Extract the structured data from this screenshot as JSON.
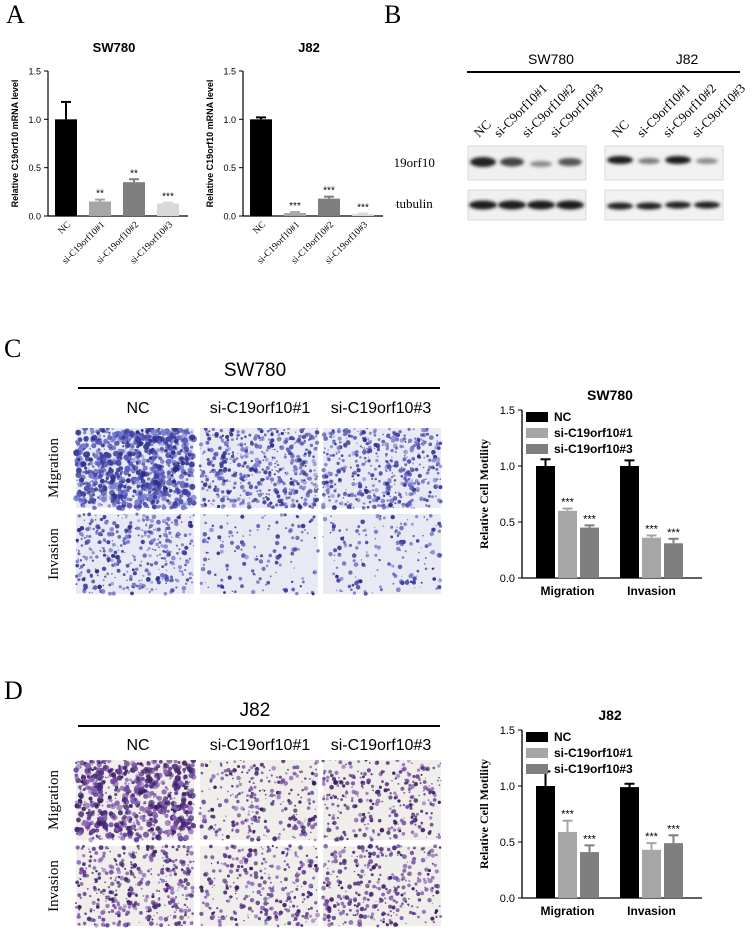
{
  "panels": {
    "A": "A",
    "B": "B",
    "C": "C",
    "D": "D"
  },
  "panelA": {
    "charts": [
      {
        "type": "bar",
        "title": "SW780",
        "ylabel": "Relative C19orf10 mRNA level",
        "categories": [
          "NC",
          "si-C19orf10#1",
          "si-C19orf10#2",
          "si-C19orf10#3"
        ],
        "values": [
          1.0,
          0.15,
          0.35,
          0.13
        ],
        "errors": [
          0.18,
          0.02,
          0.03,
          0.01
        ],
        "significance": [
          "",
          "**",
          "**",
          "***"
        ],
        "colors": [
          "#000000",
          "#a6a6a6",
          "#7f7f7f",
          "#d9d9d9"
        ],
        "ylim": [
          0,
          1.5
        ],
        "yticks": [
          "0.0",
          "0.5",
          "1.0",
          "1.5"
        ]
      },
      {
        "type": "bar",
        "title": "J82",
        "ylabel": "Relative C19orf10 mRNA level",
        "categories": [
          "NC",
          "si-C19orf10#1",
          "si-C19orf10#2",
          "si-C19orf10#3"
        ],
        "values": [
          1.0,
          0.03,
          0.18,
          0.02
        ],
        "errors": [
          0.02,
          0.01,
          0.02,
          0.005
        ],
        "significance": [
          "",
          "***",
          "***",
          "***"
        ],
        "colors": [
          "#000000",
          "#a6a6a6",
          "#7f7f7f",
          "#d9d9d9"
        ],
        "ylim": [
          0,
          1.5
        ],
        "yticks": [
          "0.0",
          "0.5",
          "1.0",
          "1.5"
        ]
      }
    ]
  },
  "panelB": {
    "groups": [
      "SW780",
      "J82"
    ],
    "lanes": [
      "NC",
      "si-C9orf10#1",
      "si-C9orf10#2",
      "si-C9orf10#3"
    ],
    "rows": [
      "C19orf10",
      "β-tubulin"
    ]
  },
  "panelC": {
    "cell_line": "SW780",
    "columns": [
      "NC",
      "si-C19orf10#1",
      "si-C19orf10#3"
    ],
    "rows": [
      "Migration",
      "Invasion"
    ]
  },
  "panelD": {
    "cell_line": "J82",
    "columns": [
      "NC",
      "si-C19orf10#1",
      "si-C19orf10#3"
    ],
    "rows": [
      "Migration",
      "Invasion"
    ]
  },
  "chart_data": [
    {
      "type": "bar",
      "title": "SW780",
      "ylabel": "Relative C19orf10 mRNA level",
      "categories": [
        "NC",
        "si-C19orf10#1",
        "si-C19orf10#2",
        "si-C19orf10#3"
      ],
      "values": [
        1.0,
        0.15,
        0.35,
        0.13
      ],
      "ylim": [
        0,
        1.5
      ]
    },
    {
      "type": "bar",
      "title": "J82",
      "ylabel": "Relative C19orf10 mRNA level",
      "categories": [
        "NC",
        "si-C19orf10#1",
        "si-C19orf10#2",
        "si-C19orf10#3"
      ],
      "values": [
        1.0,
        0.03,
        0.18,
        0.02
      ],
      "ylim": [
        0,
        1.5
      ]
    },
    {
      "type": "bar",
      "title": "SW780",
      "ylabel": "Relative Cell Motility",
      "categories": [
        "Migration",
        "Invasion"
      ],
      "series": [
        {
          "name": "NC",
          "values": [
            1.0,
            1.0
          ],
          "errors": [
            0.06,
            0.05
          ],
          "color": "#000000"
        },
        {
          "name": "si-C19orf10#1",
          "values": [
            0.6,
            0.36
          ],
          "errors": [
            0.02,
            0.02
          ],
          "color": "#a6a6a6"
        },
        {
          "name": "si-C19orf10#3",
          "values": [
            0.45,
            0.31
          ],
          "errors": [
            0.02,
            0.04
          ],
          "color": "#7f7f7f"
        }
      ],
      "significance": [
        [
          "",
          "***",
          "***"
        ],
        [
          "",
          "***",
          "***"
        ]
      ],
      "ylim": [
        0,
        1.5
      ],
      "yticks": [
        "0.0",
        "0.5",
        "1.0",
        "1.5"
      ],
      "legend": "top-left"
    },
    {
      "type": "bar",
      "title": "J82",
      "ylabel": "Relative Cell Motility",
      "categories": [
        "Migration",
        "Invasion"
      ],
      "series": [
        {
          "name": "NC",
          "values": [
            1.0,
            0.99
          ],
          "errors": [
            0.13,
            0.03
          ],
          "color": "#000000"
        },
        {
          "name": "si-C19orf10#1",
          "values": [
            0.59,
            0.43
          ],
          "errors": [
            0.1,
            0.06
          ],
          "color": "#a6a6a6"
        },
        {
          "name": "si-C19orf10#3",
          "values": [
            0.41,
            0.49
          ],
          "errors": [
            0.06,
            0.07
          ],
          "color": "#7f7f7f"
        }
      ],
      "significance": [
        [
          "",
          "***",
          "***"
        ],
        [
          "",
          "***",
          "***"
        ]
      ],
      "ylim": [
        0,
        1.5
      ],
      "yticks": [
        "0.0",
        "0.5",
        "1.0",
        "1.5"
      ],
      "legend": "top-left"
    }
  ]
}
